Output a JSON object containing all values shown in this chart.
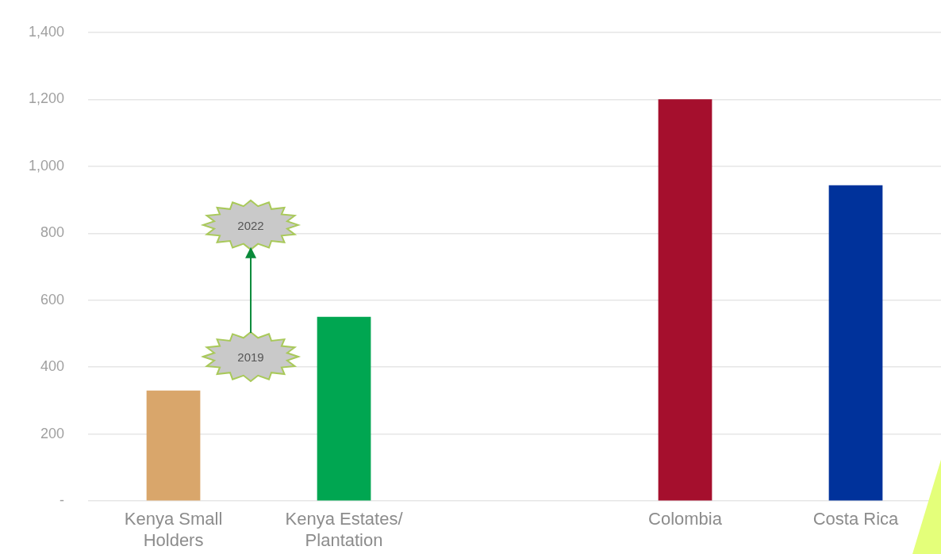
{
  "chart_data": {
    "type": "bar",
    "categories": [
      "Kenya Small Holders",
      "Kenya Estates/ Plantation",
      null,
      "Colombia",
      "Costa Rica"
    ],
    "values": [
      330,
      550,
      null,
      1200,
      943
    ],
    "colors": [
      "#d9a66b",
      "#00a651",
      null,
      "#a50f2d",
      "#00329b"
    ],
    "ylim": [
      0,
      1400
    ],
    "yticks": [
      {
        "value": 0,
        "label": "-"
      },
      200,
      400,
      600,
      800,
      {
        "value": 1000,
        "label": "1,000"
      },
      {
        "value": 1200,
        "label": "1,200"
      },
      {
        "value": 1400,
        "label": "1,400"
      }
    ],
    "grid": "y",
    "legend": false,
    "annotations": [
      "2019",
      "2022"
    ]
  }
}
